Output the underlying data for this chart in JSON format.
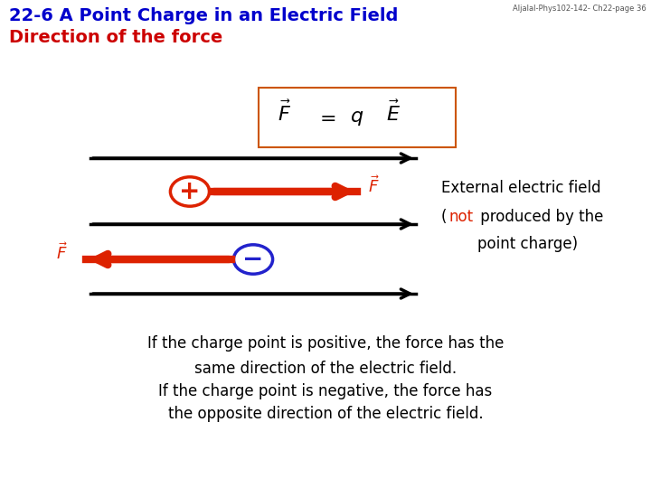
{
  "title_line1": "22-6 A Point Charge in an Electric Field",
  "title_line2": "Direction of the force",
  "title_color1": "#0000CC",
  "title_color2": "#CC0000",
  "watermark": "Aljalal-Phys102-142- Ch22-page 36",
  "bg_color": "#FFFFFF",
  "formula_box_color": "#CC5500",
  "field_line_color": "#000000",
  "force_arrow_color": "#DD2200",
  "pos_charge_color": "#DD2200",
  "neg_charge_color": "#2222CC",
  "ext_text_line1": "External electric field",
  "ext_text_line2_a": "(",
  "ext_text_line2_not": "not",
  "ext_text_line2_b": " produced by the",
  "ext_text_line3": "point charge)",
  "bottom_text_line1": "If the charge point is positive, the force has the",
  "bottom_text_line2": "same direction of the electric field.",
  "bottom_text_line3": "If the charge point is negative, the force has",
  "bottom_text_line4": "the opposite direction of the electric field."
}
